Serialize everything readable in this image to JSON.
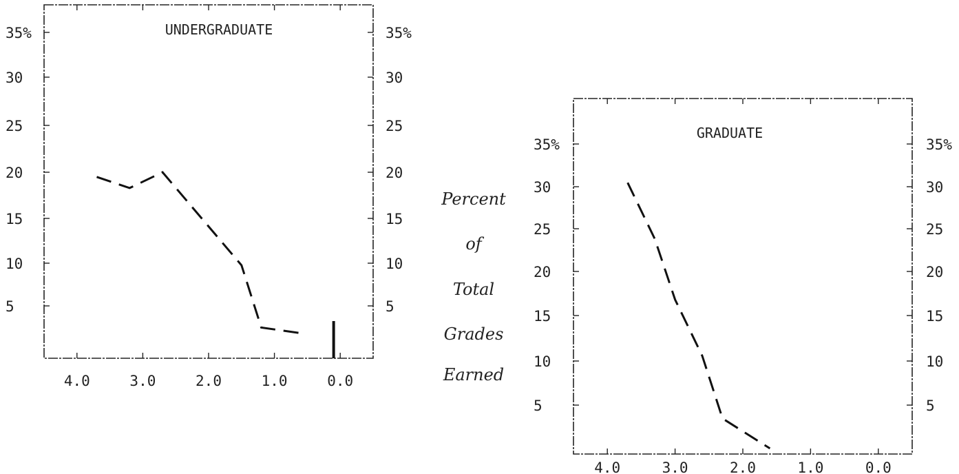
{
  "chart_data": [
    {
      "type": "line",
      "title": "UNDERGRADUATE",
      "xlabel": "",
      "ylabel": "",
      "x_ticks": [
        "4.0",
        "3.0",
        "2.0",
        "1.0",
        "0.0"
      ],
      "y_ticks_left": [
        "35%",
        "30",
        "25",
        "20",
        "15",
        "10",
        "5"
      ],
      "y_ticks_right": [
        "35%",
        "30",
        "25",
        "20",
        "15",
        "10",
        "5"
      ],
      "xlim": [
        4.5,
        -0.5
      ],
      "ylim": [
        0,
        38
      ],
      "x_reversed": true,
      "series": [
        {
          "x": [
            3.7,
            3.2,
            2.7,
            1.5,
            1.2,
            0.6
          ],
          "values": [
            19.5,
            18.3,
            20,
            10,
            3.3,
            2.7
          ]
        }
      ],
      "bar": {
        "x": 0.1,
        "value": 4.0
      }
    },
    {
      "type": "line",
      "title": "GRADUATE",
      "xlabel": "",
      "ylabel": "",
      "x_ticks": [
        "4.0",
        "3.0",
        "2.0",
        "1.0",
        "0.0"
      ],
      "y_ticks_left": [
        "35%",
        "30",
        "25",
        "20",
        "15",
        "10",
        "5"
      ],
      "y_ticks_right": [
        "35%",
        "30",
        "25",
        "20",
        "15",
        "10",
        "5"
      ],
      "xlim": [
        4.5,
        -0.5
      ],
      "ylim": [
        0,
        38
      ],
      "x_reversed": true,
      "series": [
        {
          "x": [
            3.7,
            3.3,
            3.0,
            2.6,
            2.3,
            1.6
          ],
          "values": [
            29,
            23,
            16.5,
            10.5,
            3.8,
            0.6
          ]
        }
      ]
    }
  ],
  "middle_label": [
    "Percent",
    "of",
    "Total",
    "Grades",
    "Earned"
  ],
  "colors": {
    "ink": "#111111",
    "background": "#ffffff"
  }
}
